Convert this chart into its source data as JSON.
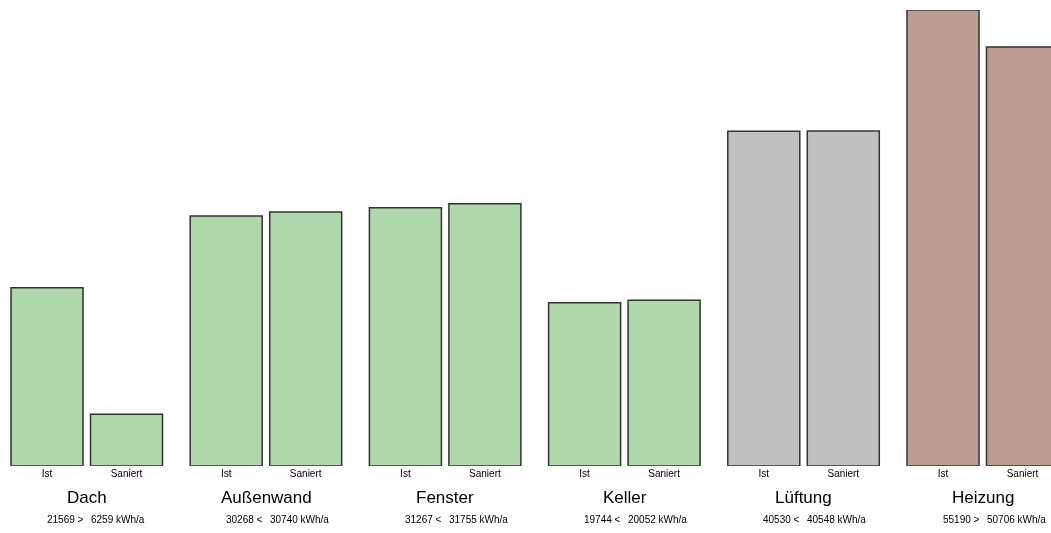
{
  "chart_data": {
    "type": "bar",
    "categories": [
      "Ist",
      "Saniert",
      "Ist",
      "Saniert",
      "Ist",
      "Saniert",
      "Ist",
      "Saniert",
      "Ist",
      "Saniert",
      "Ist",
      "Saniert"
    ],
    "values": [
      21569,
      6259,
      30268,
      30740,
      31267,
      31755,
      19744,
      20052,
      40530,
      40548,
      55190,
      50706
    ],
    "value_labels": [
      "21569 >",
      "6259 kWh/a",
      "30268 <",
      "30740 kWh/a",
      "31267 <",
      "31755 kWh/a",
      "19744 <",
      "20052 kWh/a",
      "40530 <",
      "40548 kWh/a",
      "55190 >",
      "50706 kWh/a"
    ],
    "colors": [
      "#b0d6ab",
      "#b0d6ab",
      "#b0d6ab",
      "#b0d6ab",
      "#b0d6ab",
      "#b0d6ab",
      "#b0d6ab",
      "#b0d6ab",
      "#c0c0c0",
      "#c0c0c0",
      "#bc9c90",
      "#bc9c90"
    ],
    "tick_labels": "x",
    "grid": false,
    "annotations": [
      "Dach",
      "Außenwand",
      "Fenster",
      "Keller",
      "Lüftung",
      "Heizung"
    ]
  }
}
